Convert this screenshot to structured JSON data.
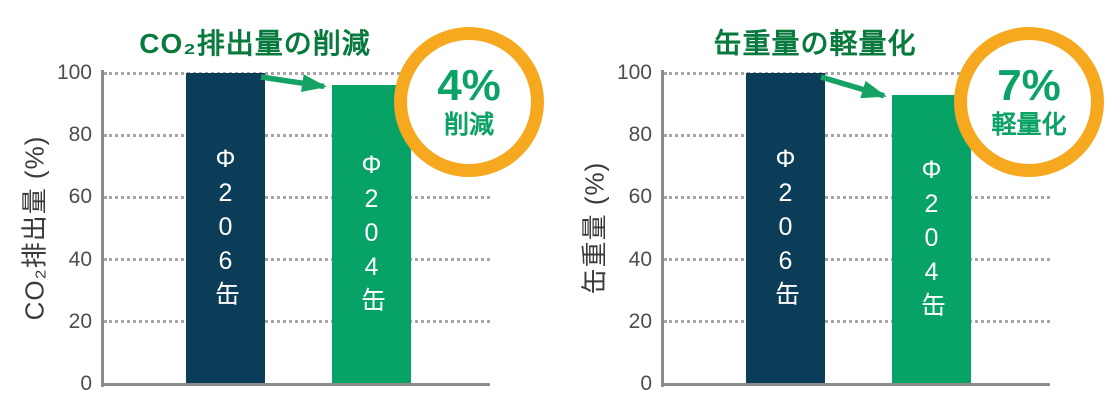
{
  "colors": {
    "title_green": "#087a3e",
    "bar_navy": "#0b3c58",
    "bar_green": "#06a266",
    "arrow_green": "#14a364",
    "badge_ring_orange": "#f6a81f",
    "badge_text_green": "#0ba266",
    "axis_gray": "#8c8c8c",
    "tick_text_gray": "#4d4d4d",
    "grid_dot_gray": "#a6a6a6",
    "background": "#ffffff"
  },
  "chart_data": [
    {
      "type": "bar",
      "title": "CO₂排出量の削減",
      "xlabel": "",
      "ylabel": "CO₂排出量 (%)",
      "categories": [
        "Φ206缶",
        "Φ204缶"
      ],
      "values": [
        100,
        96
      ],
      "bar_colors": [
        "#0b3c58",
        "#06a266"
      ],
      "yticks": [
        "100",
        "80",
        "60",
        "40",
        "20",
        "0"
      ],
      "ylim": [
        0,
        100
      ],
      "grid": "dotted-horizontal",
      "legend": "none",
      "annotation": {
        "value": "4%",
        "label": "削減",
        "style": "orange-circle-badge"
      },
      "arrow": "from Φ206缶 top to Φ204缶 top"
    },
    {
      "type": "bar",
      "title": "缶重量の軽量化",
      "xlabel": "",
      "ylabel": "缶重量 (%)",
      "categories": [
        "Φ206缶",
        "Φ204缶"
      ],
      "values": [
        100,
        93
      ],
      "bar_colors": [
        "#0b3c58",
        "#06a266"
      ],
      "yticks": [
        "100",
        "80",
        "60",
        "40",
        "20",
        "0"
      ],
      "ylim": [
        0,
        100
      ],
      "grid": "dotted-horizontal",
      "legend": "none",
      "annotation": {
        "value": "7%",
        "label": "軽量化",
        "style": "orange-circle-badge"
      },
      "arrow": "from Φ206缶 top to Φ204缶 top"
    }
  ]
}
